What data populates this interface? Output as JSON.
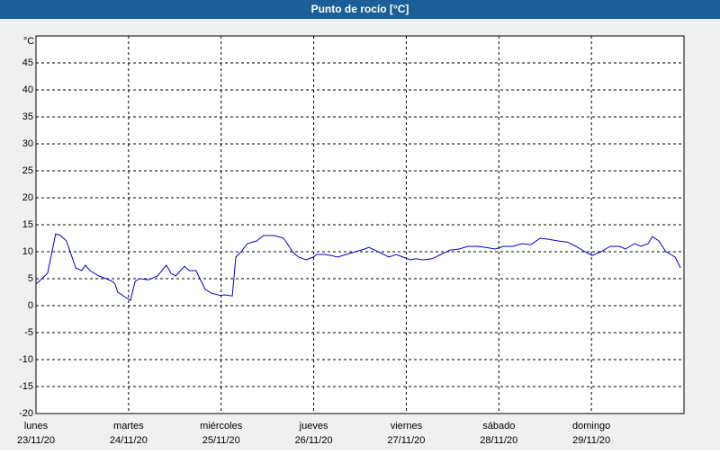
{
  "chart_data": {
    "type": "line",
    "title": "Punto de rocío [°C]",
    "y_unit": "°C",
    "xlim": [
      0,
      168
    ],
    "ylim": [
      -20,
      50
    ],
    "yticks": [
      -20,
      -15,
      -10,
      -5,
      0,
      5,
      10,
      15,
      20,
      25,
      30,
      35,
      40,
      45
    ],
    "xticks": [
      {
        "value": 0,
        "label": "lunes"
      },
      {
        "value": 24,
        "label": "martes"
      },
      {
        "value": 48,
        "label": "miércoles"
      },
      {
        "value": 72,
        "label": "jueves"
      },
      {
        "value": 96,
        "label": "viernes"
      },
      {
        "value": 120,
        "label": "sábado"
      },
      {
        "value": 144,
        "label": "domingo"
      }
    ],
    "xtick_dates": [
      "23/11/20",
      "24/11/20",
      "25/11/20",
      "26/11/20",
      "27/11/20",
      "28/11/20",
      "29/11/20"
    ],
    "grid": true,
    "series": [
      {
        "color": "#0000cc",
        "x": [
          0,
          3,
          5.1,
          6.3,
          7.9,
          10.3,
          11.9,
          12.8,
          14,
          16.3,
          18.2,
          19.8,
          20.5,
          21.2,
          23.3,
          24.5,
          25.7,
          26.8,
          29.2,
          31.5,
          33.8,
          35,
          36.2,
          38.5,
          39.7,
          41.5,
          42.5,
          43.9,
          45.5,
          47.8,
          49,
          50.9,
          51.8,
          53.2,
          54.8,
          57.2,
          59,
          61.8,
          64.2,
          66.5,
          68.1,
          70,
          71.9,
          72.8,
          74.7,
          76.5,
          78.2,
          80.5,
          82.8,
          85.2,
          86.3,
          88.7,
          91.5,
          93.3,
          95.2,
          97.1,
          98.5,
          100.3,
          102.7,
          105,
          107.3,
          109.7,
          112,
          114.3,
          116.7,
          119,
          121.3,
          123.7,
          126,
          128.3,
          130.7,
          133,
          135.3,
          137.7,
          140,
          142.3,
          144.2,
          146.5,
          148.9,
          151.2,
          152.8,
          155.2,
          156.8,
          158.7,
          159.8,
          161.5,
          163.3,
          165.7,
          167.1
        ],
        "values": [
          4,
          6,
          13.3,
          13,
          12,
          7,
          6.5,
          7.5,
          6.5,
          5.5,
          5,
          4.5,
          4,
          2.5,
          1.5,
          1,
          4.5,
          5,
          4.8,
          5.5,
          7.5,
          6,
          5.5,
          7.3,
          6.5,
          6.5,
          5,
          3,
          2.3,
          1.9,
          2,
          1.8,
          9,
          10,
          11.5,
          12,
          13,
          13,
          12.5,
          10,
          9,
          8.5,
          9,
          9.5,
          9.5,
          9.3,
          9,
          9.5,
          10,
          10.5,
          10.8,
          10,
          9,
          9.5,
          9,
          8.5,
          8.7,
          8.5,
          8.7,
          9.5,
          10.3,
          10.5,
          11,
          11,
          10.8,
          10.5,
          11,
          11,
          11.5,
          11.3,
          12.5,
          12.3,
          12,
          11.8,
          11,
          10,
          9.3,
          10,
          11,
          11,
          10.5,
          11.5,
          11,
          11.5,
          12.8,
          12,
          10,
          9,
          7
        ]
      }
    ]
  }
}
